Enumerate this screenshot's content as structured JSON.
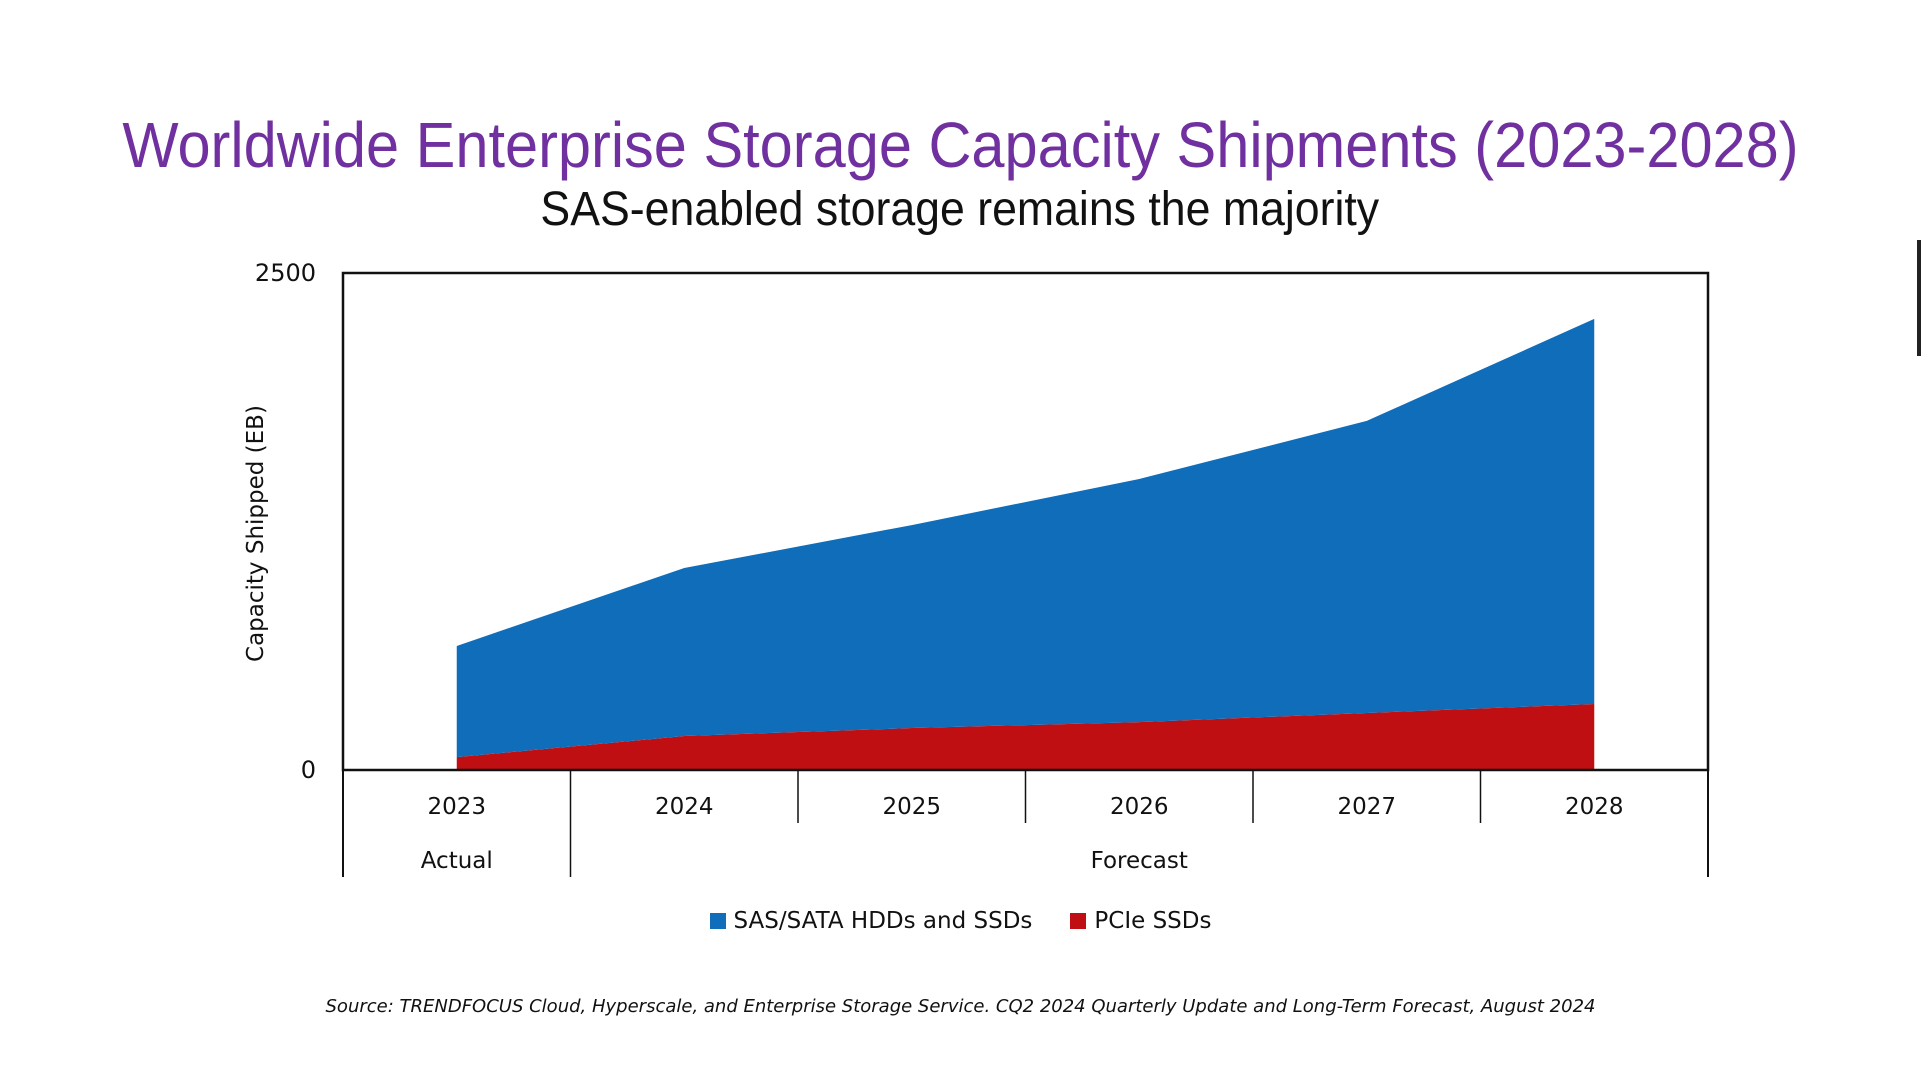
{
  "chart_data": {
    "type": "area",
    "stacked": true,
    "title": "Worldwide Enterprise Storage Capacity Shipments (2023-2028)",
    "subtitle": "SAS-enabled storage remains the majority",
    "xlabel": "",
    "ylabel": "Capacity Shipped (EB)",
    "ylim": [
      0,
      2500
    ],
    "yticks": [
      "0",
      "2500"
    ],
    "categories": [
      "2023",
      "2024",
      "2025",
      "2026",
      "2027",
      "2028"
    ],
    "category_groups": [
      {
        "label": "Actual",
        "span": [
          "2023"
        ]
      },
      {
        "label": "Forecast",
        "span": [
          "2024",
          "2025",
          "2026",
          "2027",
          "2028"
        ]
      }
    ],
    "series": [
      {
        "name": "PCIe SSDs",
        "color": "#c00f12",
        "values": [
          65,
          171,
          211,
          241,
          287,
          332
        ]
      },
      {
        "name": "SAS/SATA HDDs and SSDs",
        "color": "#0f6dba",
        "values": [
          559,
          845,
          1021,
          1223,
          1469,
          1937
        ]
      }
    ],
    "legend": {
      "position": "bottom",
      "entries": [
        {
          "label": "SAS/SATA HDDs and SSDs",
          "color": "#0f6dba"
        },
        {
          "label": "PCIe SSDs",
          "color": "#c00f12"
        }
      ]
    },
    "grid": false,
    "source": "Source: TRENDFOCUS Cloud, Hyperscale, and Enterprise Storage Service.  CQ2 2024 Quarterly Update and Long-Term Forecast, August 2024"
  },
  "colors": {
    "title": "#7030a0",
    "sas": "#0f6dba",
    "pcie": "#c00f12"
  }
}
